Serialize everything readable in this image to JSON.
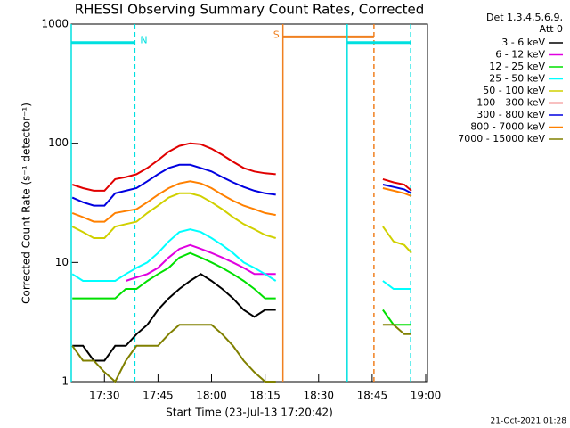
{
  "chart_data": {
    "type": "line",
    "title": "RHESSI Observing Summary Count Rates, Corrected",
    "x_label": "Start Time (23-Jul-13 17:20:42)",
    "y_label": "Corrected Count Rate (s⁻¹ detector⁻¹)",
    "legend_title": [
      "Det 1,3,4,5,6,9,",
      "Att 0"
    ],
    "footer": "21-Oct-2021 01:28",
    "log_y": true,
    "xlim": [
      1040.7,
      1140.5
    ],
    "ylim": [
      1,
      1000
    ],
    "xticks": [
      {
        "value": 1050,
        "label": "17:30"
      },
      {
        "value": 1065,
        "label": "17:45"
      },
      {
        "value": 1080,
        "label": "18:00"
      },
      {
        "value": 1095,
        "label": "18:15"
      },
      {
        "value": 1110,
        "label": "18:30"
      },
      {
        "value": 1125,
        "label": "18:45"
      },
      {
        "value": 1140,
        "label": "19:00"
      }
    ],
    "yticks": [
      1,
      10,
      100,
      1000
    ],
    "x": [
      1041,
      1044,
      1047,
      1050,
      1053,
      1056,
      1059,
      1062,
      1065,
      1068,
      1071,
      1074,
      1077,
      1080,
      1083,
      1086,
      1089,
      1092,
      1095,
      1098,
      1110,
      1128,
      1131,
      1134,
      1136
    ],
    "series": [
      {
        "name": "3 - 6 keV",
        "color": "#000000",
        "values": [
          2,
          2,
          1.5,
          1.5,
          2,
          2,
          2.5,
          3,
          4,
          5,
          6,
          7,
          8,
          7,
          6,
          5,
          4,
          3.5,
          4,
          4,
          null,
          null,
          null,
          null,
          null
        ]
      },
      {
        "name": "6 - 12 keV",
        "color": "#e000e0",
        "values": [
          null,
          null,
          null,
          null,
          null,
          7,
          7.5,
          8,
          9,
          11,
          13,
          14,
          13,
          12,
          11,
          10,
          9,
          8,
          8,
          8,
          null,
          null,
          null,
          null,
          null
        ]
      },
      {
        "name": "12 - 25 keV",
        "color": "#00e000",
        "values": [
          5,
          5,
          5,
          5,
          5,
          6,
          6,
          7,
          8,
          9,
          11,
          12,
          11,
          10,
          9,
          8,
          7,
          6,
          5,
          5,
          null,
          4,
          3,
          3,
          3
        ]
      },
      {
        "name": "25 - 50 keV",
        "color": "#00ffff",
        "values": [
          8,
          7,
          7,
          7,
          7,
          8,
          9,
          10,
          12,
          15,
          18,
          19,
          18,
          16,
          14,
          12,
          10,
          9,
          8,
          7,
          null,
          7,
          6,
          6,
          6
        ]
      },
      {
        "name": "50 - 100 keV",
        "color": "#d0d000",
        "values": [
          20,
          18,
          16,
          16,
          20,
          21,
          22,
          26,
          30,
          35,
          38,
          38,
          36,
          32,
          28,
          24,
          21,
          19,
          17,
          16,
          null,
          20,
          15,
          14,
          12
        ]
      },
      {
        "name": "100 - 300 keV",
        "color": "#e00000",
        "values": [
          45,
          42,
          40,
          40,
          50,
          52,
          55,
          62,
          72,
          85,
          95,
          100,
          98,
          90,
          80,
          70,
          62,
          58,
          56,
          55,
          null,
          50,
          47,
          45,
          40
        ]
      },
      {
        "name": "300 - 800 keV",
        "color": "#0000e0",
        "values": [
          35,
          32,
          30,
          30,
          38,
          40,
          42,
          48,
          55,
          62,
          66,
          66,
          62,
          58,
          52,
          47,
          43,
          40,
          38,
          37,
          null,
          45,
          43,
          41,
          38
        ]
      },
      {
        "name": "800 - 7000 keV",
        "color": "#ff8000",
        "values": [
          26,
          24,
          22,
          22,
          26,
          27,
          28,
          32,
          37,
          42,
          46,
          48,
          46,
          42,
          37,
          33,
          30,
          28,
          26,
          25,
          null,
          42,
          40,
          38,
          36
        ]
      },
      {
        "name": "7000 - 15000 keV",
        "color": "#808000",
        "values": [
          2,
          1.5,
          1.5,
          1.2,
          1,
          1.5,
          2,
          2,
          2,
          2.5,
          3,
          3,
          3,
          3,
          2.5,
          2,
          1.5,
          1.2,
          1,
          1,
          null,
          3,
          3,
          2.5,
          2.5
        ]
      }
    ],
    "intervals": [
      {
        "label": "N",
        "color": "#00e0e0",
        "start": 1040.7,
        "end": 1058.5,
        "level": 700
      },
      {
        "label": "S",
        "color": "#f08020",
        "start": 1100,
        "end": 1125.5,
        "level": 780
      },
      {
        "color": "#00e0e0",
        "start": 1118,
        "end": 1135.8,
        "level": 700
      }
    ]
  }
}
